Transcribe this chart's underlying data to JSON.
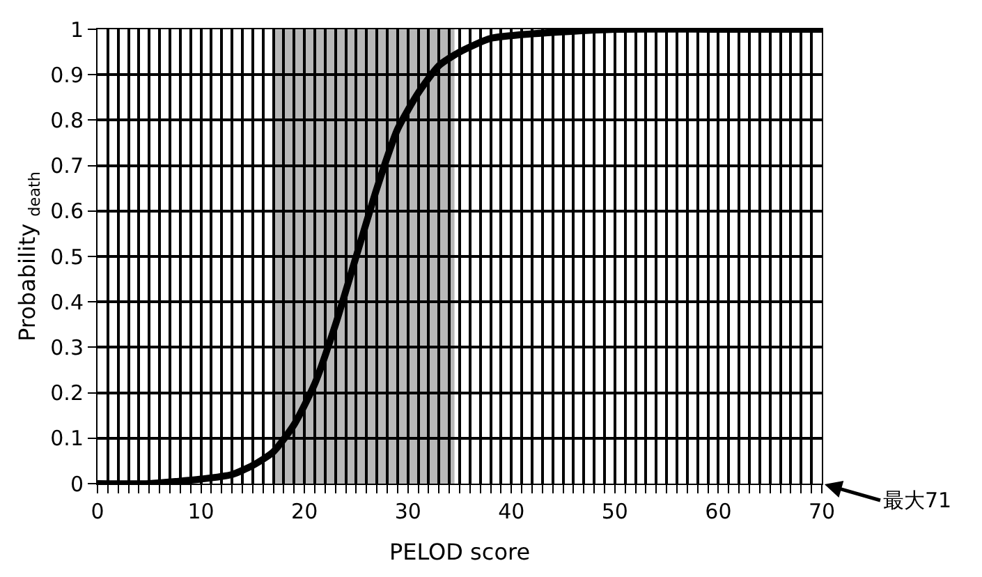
{
  "chart_data": {
    "type": "line",
    "xlabel": "PELOD score",
    "ylabel": "Probability $_{death}$",
    "x": [
      0,
      5,
      10,
      13,
      15,
      17,
      19,
      21,
      23,
      25,
      27,
      29,
      31,
      33,
      35,
      38,
      42,
      50,
      60,
      70
    ],
    "series": [
      {
        "color": "#000000",
        "values": [
          0.0,
          0.0,
          0.01,
          0.02,
          0.04,
          0.07,
          0.13,
          0.22,
          0.35,
          0.5,
          0.65,
          0.78,
          0.86,
          0.92,
          0.95,
          0.98,
          0.99,
          1.0,
          1.0,
          1.0
        ]
      }
    ],
    "xlim": [
      0,
      70
    ],
    "xticks": [
      0,
      {
        "value": 1,
        "label": null
      },
      {
        "value": 2,
        "label": null
      },
      {
        "value": 3,
        "label": null
      },
      {
        "value": 4,
        "label": null
      },
      {
        "value": 5,
        "label": null
      },
      {
        "value": 6,
        "label": null
      },
      {
        "value": 7,
        "label": null
      },
      {
        "value": 8,
        "label": null
      },
      {
        "value": 9,
        "label": null
      },
      10,
      {
        "value": 11,
        "label": null
      },
      {
        "value": 12,
        "label": null
      },
      {
        "value": 13,
        "label": null
      },
      {
        "value": 14,
        "label": null
      },
      {
        "value": 15,
        "label": null
      },
      {
        "value": 16,
        "label": null
      },
      {
        "value": 17,
        "label": null
      },
      {
        "value": 18,
        "label": null
      },
      {
        "value": 19,
        "label": null
      },
      20,
      {
        "value": 21,
        "label": null
      },
      {
        "value": 22,
        "label": null
      },
      {
        "value": 23,
        "label": null
      },
      {
        "value": 24,
        "label": null
      },
      {
        "value": 25,
        "label": null
      },
      {
        "value": 26,
        "label": null
      },
      {
        "value": 27,
        "label": null
      },
      {
        "value": 28,
        "label": null
      },
      {
        "value": 29,
        "label": null
      },
      30,
      {
        "value": 31,
        "label": null
      },
      {
        "value": 32,
        "label": null
      },
      {
        "value": 33,
        "label": null
      },
      {
        "value": 34,
        "label": null
      },
      {
        "value": 35,
        "label": null
      },
      {
        "value": 36,
        "label": null
      },
      {
        "value": 37,
        "label": null
      },
      {
        "value": 38,
        "label": null
      },
      {
        "value": 39,
        "label": null
      },
      40,
      {
        "value": 41,
        "label": null
      },
      {
        "value": 42,
        "label": null
      },
      {
        "value": 43,
        "label": null
      },
      {
        "value": 44,
        "label": null
      },
      {
        "value": 45,
        "label": null
      },
      {
        "value": 46,
        "label": null
      },
      {
        "value": 47,
        "label": null
      },
      {
        "value": 48,
        "label": null
      },
      {
        "value": 49,
        "label": null
      },
      50,
      {
        "value": 51,
        "label": null
      },
      {
        "value": 52,
        "label": null
      },
      {
        "value": 53,
        "label": null
      },
      {
        "value": 54,
        "label": null
      },
      {
        "value": 55,
        "label": null
      },
      {
        "value": 56,
        "label": null
      },
      {
        "value": 57,
        "label": null
      },
      {
        "value": 58,
        "label": null
      },
      {
        "value": 59,
        "label": null
      },
      60,
      {
        "value": 61,
        "label": null
      },
      {
        "value": 62,
        "label": null
      },
      {
        "value": 63,
        "label": null
      },
      {
        "value": 64,
        "label": null
      },
      {
        "value": 65,
        "label": null
      },
      {
        "value": 66,
        "label": null
      },
      {
        "value": 67,
        "label": null
      },
      {
        "value": 68,
        "label": null
      },
      {
        "value": 69,
        "label": null
      },
      70
    ],
    "ylim": [
      0,
      1
    ],
    "yticks": [
      0,
      0.1,
      0.2,
      0.3,
      0.4,
      0.5,
      0.6,
      0.7,
      0.8,
      0.9,
      1
    ],
    "grid": true,
    "marker": "none",
    "line_style": "solid",
    "bands": [
      {
        "axis": "x",
        "from": 17,
        "to": 34.5,
        "color": "#b8b8b8"
      }
    ],
    "annotations": [
      "最大71"
    ]
  }
}
